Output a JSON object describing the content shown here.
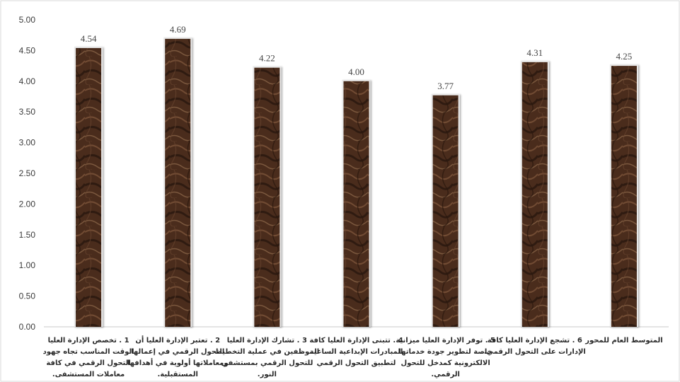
{
  "chart_data": {
    "type": "bar",
    "categories": [
      "1 . تخصص الإدارة العليا الوقت المناسب تجاه جهود التحول الرقمي في كافة معاملات المستشفى.",
      "2 . تعتبر الإدارة العليا أن التحول الرقمي في إعمالها ومعاملاتها أولوية في أهدافها المستقبلية.",
      "3 . تشارك الإدارة العليا الموظفين في عملية التخطيط للتحول الرقمي بمستشفى النور.",
      "4 . تتبنى الإدارة العليا كافة المبادرات الإبداعية الساعية لتطبيق التحول الرقمي",
      "5 . توفر الإدارة العليا ميزانية خاصة لتطوير جودة خدماتها الالكترونية كمدخل للتحول الرقمي.",
      "6 . تشجع الإدارة العليا كافة الإدارات على التحول الرقمي.",
      "المتوسط العام للمحور"
    ],
    "category_lines": [
      [
        "1 . تخصص الإدارة العليا",
        "الوقت المناسب تجاه جهود",
        "التحول الرقمي في كافة",
        "معاملات المستشفى."
      ],
      [
        "2 . تعتبر الإدارة العليا أن",
        "التحول الرقمي في إعمالها",
        "ومعاملاتها أولوية في أهدافها",
        "المستقبلية."
      ],
      [
        "3 . تشارك الإدارة العليا",
        "الموظفين في عملية التخطيط",
        "للتحول الرقمي بمستشفى",
        "النور."
      ],
      [
        "4 . تتبنى الإدارة العليا كافة",
        "المبادرات الإبداعية الساعية",
        "لتطبيق التحول الرقمي"
      ],
      [
        "5 . توفر الإدارة العليا ميزانية",
        "خاصة لتطوير جودة خدماتها",
        "الالكترونية كمدخل للتحول",
        "الرقمي."
      ],
      [
        "6 . تشجع الإدارة العليا كافة",
        "الإدارات على التحول الرقمي."
      ],
      [
        "المتوسط العام للمحور"
      ]
    ],
    "values": [
      4.54,
      4.69,
      4.22,
      4.0,
      3.77,
      4.31,
      4.25
    ],
    "value_labels": [
      "4.54",
      "4.69",
      "4.22",
      "4.00",
      "3.77",
      "4.31",
      "4.25"
    ],
    "yticks": [
      "0.00",
      "0.50",
      "1.00",
      "1.50",
      "2.00",
      "2.50",
      "3.00",
      "3.50",
      "4.00",
      "4.50",
      "5.00"
    ],
    "ylim": [
      0,
      5
    ],
    "grid": false,
    "title": "",
    "xlabel": "",
    "ylabel": "",
    "colors": {
      "bar_dark": "#3b2417",
      "bar_mid": "#5e3a24",
      "bar_light": "#8a6245",
      "bar_border": "#e8e8e8",
      "axis": "#c8c8c8",
      "frame": "#d9d9d9"
    }
  }
}
